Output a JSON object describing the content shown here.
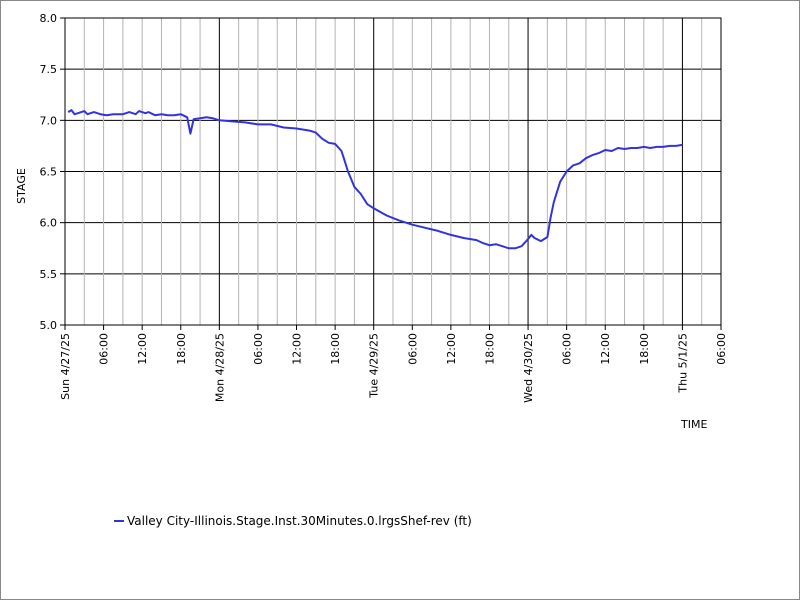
{
  "colors": {
    "series": "#3333dd",
    "major_grid": "#000000",
    "minor_grid": "#b4b4b4",
    "frame": "#888888"
  },
  "chart_data": {
    "type": "line",
    "title": "",
    "xlabel": "TIME",
    "ylabel": "STAGE",
    "ylim": [
      5.0,
      8.0
    ],
    "yticks": [
      "5.0",
      "5.5",
      "6.0",
      "6.5",
      "7.0",
      "7.5",
      "8.0"
    ],
    "xlim": [
      "2025-04-27 00:00",
      "2025-05-01 06:00"
    ],
    "xticks": [
      {
        "label": "Sun 4/27/25",
        "major": true
      },
      {
        "label": "06:00",
        "major": false
      },
      {
        "label": "12:00",
        "major": false
      },
      {
        "label": "18:00",
        "major": false
      },
      {
        "label": "Mon 4/28/25",
        "major": true
      },
      {
        "label": "06:00",
        "major": false
      },
      {
        "label": "12:00",
        "major": false
      },
      {
        "label": "18:00",
        "major": false
      },
      {
        "label": "Tue 4/29/25",
        "major": true
      },
      {
        "label": "06:00",
        "major": false
      },
      {
        "label": "12:00",
        "major": false
      },
      {
        "label": "18:00",
        "major": false
      },
      {
        "label": "Wed 4/30/25",
        "major": true
      },
      {
        "label": "06:00",
        "major": false
      },
      {
        "label": "12:00",
        "major": false
      },
      {
        "label": "18:00",
        "major": false
      },
      {
        "label": "Thu 5/1/25",
        "major": true
      },
      {
        "label": "06:00",
        "major": false
      }
    ],
    "grid": true,
    "legend_position": "bottom-left",
    "series": [
      {
        "name": "Valley City-Illinois.Stage.Inst.30Minutes.0.lrgsShef-rev (ft)",
        "points": [
          [
            "2025-04-27 00:30",
            7.08
          ],
          [
            "2025-04-27 01:00",
            7.1
          ],
          [
            "2025-04-27 01:30",
            7.06
          ],
          [
            "2025-04-27 02:00",
            7.07
          ],
          [
            "2025-04-27 03:00",
            7.09
          ],
          [
            "2025-04-27 03:30",
            7.06
          ],
          [
            "2025-04-27 04:30",
            7.08
          ],
          [
            "2025-04-27 05:30",
            7.06
          ],
          [
            "2025-04-27 06:30",
            7.05
          ],
          [
            "2025-04-27 07:30",
            7.06
          ],
          [
            "2025-04-27 09:00",
            7.06
          ],
          [
            "2025-04-27 10:00",
            7.08
          ],
          [
            "2025-04-27 11:00",
            7.06
          ],
          [
            "2025-04-27 11:30",
            7.09
          ],
          [
            "2025-04-27 12:30",
            7.07
          ],
          [
            "2025-04-27 13:00",
            7.08
          ],
          [
            "2025-04-27 14:00",
            7.05
          ],
          [
            "2025-04-27 15:00",
            7.06
          ],
          [
            "2025-04-27 16:00",
            7.05
          ],
          [
            "2025-04-27 17:00",
            7.05
          ],
          [
            "2025-04-27 18:00",
            7.06
          ],
          [
            "2025-04-27 19:00",
            7.03
          ],
          [
            "2025-04-27 19:30",
            6.87
          ],
          [
            "2025-04-27 20:00",
            7.01
          ],
          [
            "2025-04-27 21:00",
            7.02
          ],
          [
            "2025-04-27 22:00",
            7.03
          ],
          [
            "2025-04-27 23:00",
            7.02
          ],
          [
            "2025-04-28 00:00",
            7.0
          ],
          [
            "2025-04-28 02:00",
            6.99
          ],
          [
            "2025-04-28 04:00",
            6.98
          ],
          [
            "2025-04-28 06:00",
            6.96
          ],
          [
            "2025-04-28 08:00",
            6.96
          ],
          [
            "2025-04-28 10:00",
            6.93
          ],
          [
            "2025-04-28 12:00",
            6.92
          ],
          [
            "2025-04-28 14:00",
            6.9
          ],
          [
            "2025-04-28 15:00",
            6.88
          ],
          [
            "2025-04-28 16:00",
            6.82
          ],
          [
            "2025-04-28 17:00",
            6.78
          ],
          [
            "2025-04-28 18:00",
            6.77
          ],
          [
            "2025-04-28 19:00",
            6.7
          ],
          [
            "2025-04-28 19:30",
            6.6
          ],
          [
            "2025-04-28 20:00",
            6.5
          ],
          [
            "2025-04-28 21:00",
            6.35
          ],
          [
            "2025-04-28 22:00",
            6.28
          ],
          [
            "2025-04-28 23:00",
            6.18
          ],
          [
            "2025-04-29 00:00",
            6.14
          ],
          [
            "2025-04-29 02:00",
            6.07
          ],
          [
            "2025-04-29 04:00",
            6.02
          ],
          [
            "2025-04-29 06:00",
            5.98
          ],
          [
            "2025-04-29 08:00",
            5.95
          ],
          [
            "2025-04-29 10:00",
            5.92
          ],
          [
            "2025-04-29 12:00",
            5.88
          ],
          [
            "2025-04-29 14:00",
            5.85
          ],
          [
            "2025-04-29 16:00",
            5.83
          ],
          [
            "2025-04-29 17:00",
            5.8
          ],
          [
            "2025-04-29 18:00",
            5.78
          ],
          [
            "2025-04-29 19:00",
            5.79
          ],
          [
            "2025-04-29 20:00",
            5.77
          ],
          [
            "2025-04-29 21:00",
            5.75
          ],
          [
            "2025-04-29 22:00",
            5.75
          ],
          [
            "2025-04-29 23:00",
            5.77
          ],
          [
            "2025-04-30 00:00",
            5.84
          ],
          [
            "2025-04-30 00:30",
            5.88
          ],
          [
            "2025-04-30 01:00",
            5.85
          ],
          [
            "2025-04-30 02:00",
            5.82
          ],
          [
            "2025-04-30 03:00",
            5.86
          ],
          [
            "2025-04-30 03:30",
            6.05
          ],
          [
            "2025-04-30 04:00",
            6.2
          ],
          [
            "2025-04-30 05:00",
            6.4
          ],
          [
            "2025-04-30 06:00",
            6.5
          ],
          [
            "2025-04-30 07:00",
            6.56
          ],
          [
            "2025-04-30 08:00",
            6.58
          ],
          [
            "2025-04-30 09:00",
            6.63
          ],
          [
            "2025-04-30 10:00",
            6.66
          ],
          [
            "2025-04-30 11:00",
            6.68
          ],
          [
            "2025-04-30 12:00",
            6.71
          ],
          [
            "2025-04-30 13:00",
            6.7
          ],
          [
            "2025-04-30 14:00",
            6.73
          ],
          [
            "2025-04-30 15:00",
            6.72
          ],
          [
            "2025-04-30 16:00",
            6.73
          ],
          [
            "2025-04-30 17:00",
            6.73
          ],
          [
            "2025-04-30 18:00",
            6.74
          ],
          [
            "2025-04-30 19:00",
            6.73
          ],
          [
            "2025-04-30 20:00",
            6.74
          ],
          [
            "2025-04-30 21:00",
            6.74
          ],
          [
            "2025-04-30 22:00",
            6.75
          ],
          [
            "2025-04-30 23:00",
            6.75
          ],
          [
            "2025-05-01 00:00",
            6.76
          ]
        ]
      }
    ]
  }
}
